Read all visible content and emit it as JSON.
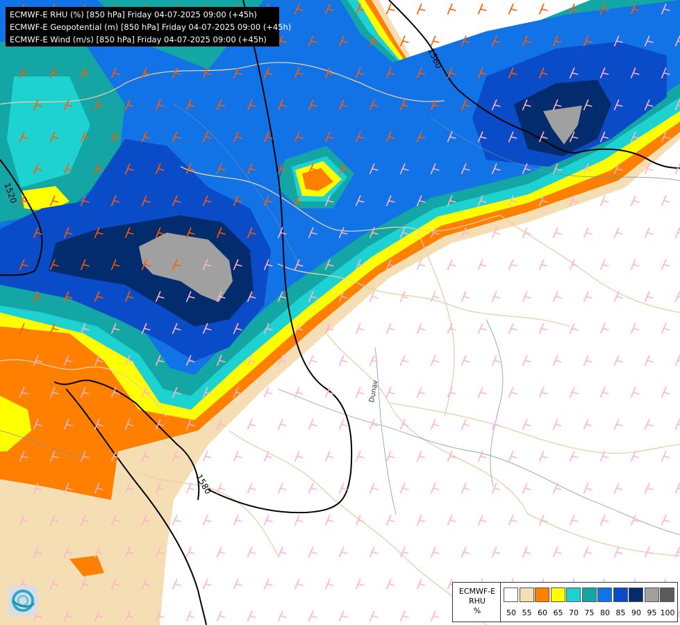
{
  "titles": [
    "ECMWF-E RHU (%) [850 hPa] Friday 04-07-2025 09:00 (+45h)",
    "ECMWF-E Geopotential (m) [850 hPa] Friday 04-07-2025 09:00 (+45h)",
    "ECMWF-E Wind (m/s) [850 hPa] Friday 04-07-2025 09:00 (+45h)"
  ],
  "contour_labels": [
    "1560",
    "1520",
    "1580"
  ],
  "river_label": "Dunav",
  "legend": {
    "model": "ECMWF-E",
    "variable": "RHU",
    "unit": "%",
    "levels": [
      "50",
      "55",
      "60",
      "65",
      "70",
      "75",
      "80",
      "85",
      "90",
      "95",
      "100"
    ],
    "colors": [
      "#ffffff",
      "#f5deb3",
      "#ff8000",
      "#ffff00",
      "#1ed2d2",
      "#14a5a5",
      "#1273e6",
      "#0a4bc8",
      "#022c6e",
      "#a0a0a0",
      "#5a5a5a"
    ]
  },
  "barb_colors": {
    "strong": "#ff5a00",
    "moderate": "#ffb4c8"
  },
  "logo_icon": "ecmwf-logo-icon"
}
